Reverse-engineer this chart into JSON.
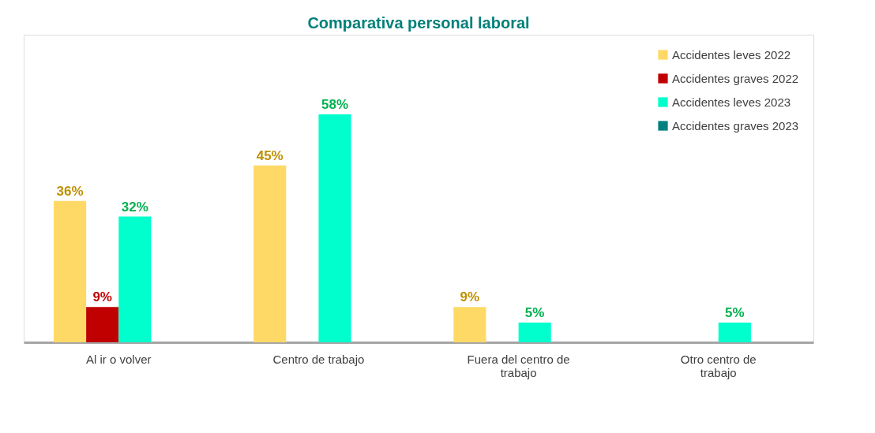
{
  "chart_data": {
    "type": "bar",
    "title": "Comparativa personal laboral",
    "categories": [
      "Al ir o volver",
      "Centro de trabajo",
      "Fuera del centro de trabajo",
      "Otro centro de trabajo"
    ],
    "series": [
      {
        "name": "Accidentes leves 2022",
        "color": "#ffd966",
        "values": [
          36,
          45,
          9,
          null
        ],
        "value_labels": [
          "36%",
          "45%",
          "9%",
          null
        ]
      },
      {
        "name": "Accidentes graves 2022",
        "color": "#c00000",
        "values": [
          9,
          null,
          null,
          null
        ],
        "value_labels": [
          "9%",
          null,
          null,
          null
        ]
      },
      {
        "name": "Accidentes leves 2023",
        "color": "#00ffcc",
        "values": [
          32,
          58,
          5,
          5
        ],
        "value_labels": [
          "32%",
          "58%",
          "5%",
          "5%"
        ]
      },
      {
        "name": "Accidentes graves 2023",
        "color": "#008080",
        "values": [
          null,
          null,
          null,
          null
        ]
      }
    ],
    "legend": "top right",
    "grid": false
  }
}
